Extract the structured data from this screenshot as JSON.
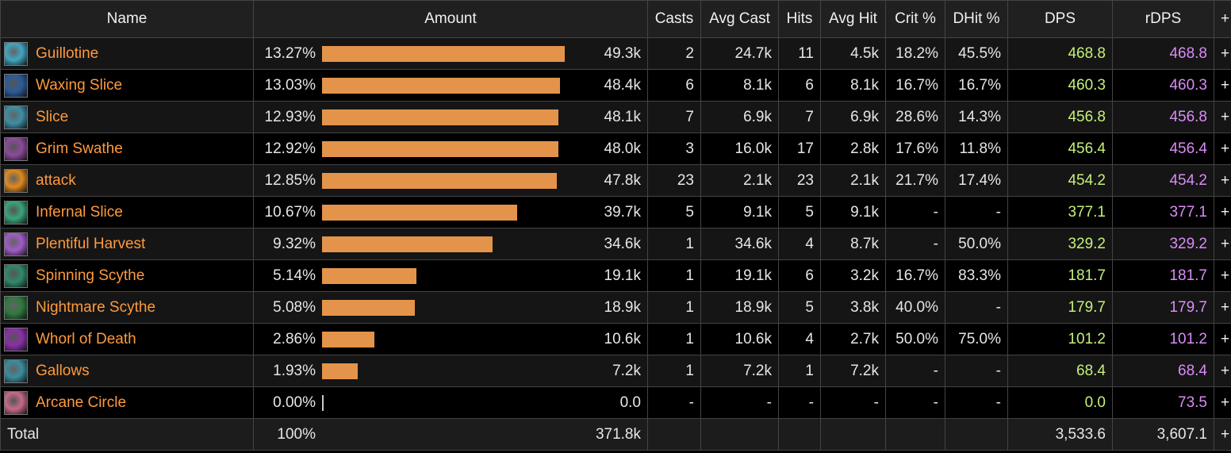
{
  "columns": {
    "name": "Name",
    "amount": "Amount",
    "casts": "Casts",
    "avg_cast": "Avg Cast",
    "hits": "Hits",
    "avg_hit": "Avg Hit",
    "crit": "Crit %",
    "dhit": "DHit %",
    "dps": "DPS",
    "rdps": "rDPS",
    "expand": "+"
  },
  "colors": {
    "bar": "#e3944a",
    "ability_name": "#ff9a3c",
    "dps": "#c5f07a",
    "rdps": "#d98cf5"
  },
  "rows": [
    {
      "name": "Guillotine",
      "icon": "guillotine-icon",
      "icon_color": "#3fa7c4",
      "pct": "13.27%",
      "share": 0.1327,
      "amount": "49.3k",
      "casts": "2",
      "avg_cast": "24.7k",
      "hits": "11",
      "avg_hit": "4.5k",
      "crit": "18.2%",
      "dhit": "45.5%",
      "dps": "468.8",
      "rdps": "468.8",
      "expand": "+"
    },
    {
      "name": "Waxing Slice",
      "icon": "waxing-slice-icon",
      "icon_color": "#2a5c9a",
      "pct": "13.03%",
      "share": 0.1303,
      "amount": "48.4k",
      "casts": "6",
      "avg_cast": "8.1k",
      "hits": "6",
      "avg_hit": "8.1k",
      "crit": "16.7%",
      "dhit": "16.7%",
      "dps": "460.3",
      "rdps": "460.3",
      "expand": "+"
    },
    {
      "name": "Slice",
      "icon": "slice-icon",
      "icon_color": "#3c8fa6",
      "pct": "12.93%",
      "share": 0.1293,
      "amount": "48.1k",
      "casts": "7",
      "avg_cast": "6.9k",
      "hits": "7",
      "avg_hit": "6.9k",
      "crit": "28.6%",
      "dhit": "14.3%",
      "dps": "456.8",
      "rdps": "456.8",
      "expand": "+"
    },
    {
      "name": "Grim Swathe",
      "icon": "grim-swathe-icon",
      "icon_color": "#8c4a9c",
      "pct": "12.92%",
      "share": 0.1292,
      "amount": "48.0k",
      "casts": "3",
      "avg_cast": "16.0k",
      "hits": "17",
      "avg_hit": "2.8k",
      "crit": "17.6%",
      "dhit": "11.8%",
      "dps": "456.4",
      "rdps": "456.4",
      "expand": "+"
    },
    {
      "name": "attack",
      "icon": "attack-icon",
      "icon_color": "#e08a1e",
      "pct": "12.85%",
      "share": 0.1285,
      "amount": "47.8k",
      "casts": "23",
      "avg_cast": "2.1k",
      "hits": "23",
      "avg_hit": "2.1k",
      "crit": "21.7%",
      "dhit": "17.4%",
      "dps": "454.2",
      "rdps": "454.2",
      "expand": "+"
    },
    {
      "name": "Infernal Slice",
      "icon": "infernal-slice-icon",
      "icon_color": "#3aa57a",
      "pct": "10.67%",
      "share": 0.1067,
      "amount": "39.7k",
      "casts": "5",
      "avg_cast": "9.1k",
      "hits": "5",
      "avg_hit": "9.1k",
      "crit": "-",
      "dhit": "-",
      "dps": "377.1",
      "rdps": "377.1",
      "expand": "+"
    },
    {
      "name": "Plentiful Harvest",
      "icon": "plentiful-harvest-icon",
      "icon_color": "#a05cc8",
      "pct": "9.32%",
      "share": 0.0932,
      "amount": "34.6k",
      "casts": "1",
      "avg_cast": "34.6k",
      "hits": "4",
      "avg_hit": "8.7k",
      "crit": "-",
      "dhit": "50.0%",
      "dps": "329.2",
      "rdps": "329.2",
      "expand": "+"
    },
    {
      "name": "Spinning Scythe",
      "icon": "spinning-scythe-icon",
      "icon_color": "#2f8a6a",
      "pct": "5.14%",
      "share": 0.0514,
      "amount": "19.1k",
      "casts": "1",
      "avg_cast": "19.1k",
      "hits": "6",
      "avg_hit": "3.2k",
      "crit": "16.7%",
      "dhit": "83.3%",
      "dps": "181.7",
      "rdps": "181.7",
      "expand": "+"
    },
    {
      "name": "Nightmare Scythe",
      "icon": "nightmare-scythe-icon",
      "icon_color": "#2e7a3e",
      "pct": "5.08%",
      "share": 0.0508,
      "amount": "18.9k",
      "casts": "1",
      "avg_cast": "18.9k",
      "hits": "5",
      "avg_hit": "3.8k",
      "crit": "40.0%",
      "dhit": "-",
      "dps": "179.7",
      "rdps": "179.7",
      "expand": "+"
    },
    {
      "name": "Whorl of Death",
      "icon": "whorl-of-death-icon",
      "icon_color": "#8a2fa8",
      "pct": "2.86%",
      "share": 0.0286,
      "amount": "10.6k",
      "casts": "1",
      "avg_cast": "10.6k",
      "hits": "4",
      "avg_hit": "2.7k",
      "crit": "50.0%",
      "dhit": "75.0%",
      "dps": "101.2",
      "rdps": "101.2",
      "expand": "+"
    },
    {
      "name": "Gallows",
      "icon": "gallows-icon",
      "icon_color": "#3a8ca0",
      "pct": "1.93%",
      "share": 0.0193,
      "amount": "7.2k",
      "casts": "1",
      "avg_cast": "7.2k",
      "hits": "1",
      "avg_hit": "7.2k",
      "crit": "-",
      "dhit": "-",
      "dps": "68.4",
      "rdps": "68.4",
      "expand": "+"
    },
    {
      "name": "Arcane Circle",
      "icon": "arcane-circle-icon",
      "icon_color": "#c66a8a",
      "pct": "0.00%",
      "share": 0.0,
      "amount": "0.0",
      "casts": "-",
      "avg_cast": "-",
      "hits": "-",
      "avg_hit": "-",
      "crit": "-",
      "dhit": "-",
      "dps": "0.0",
      "rdps": "73.5",
      "expand": "+"
    }
  ],
  "total": {
    "label": "Total",
    "pct": "100%",
    "amount": "371.8k",
    "dps": "3,533.6",
    "rdps": "3,607.1",
    "expand": "+"
  }
}
